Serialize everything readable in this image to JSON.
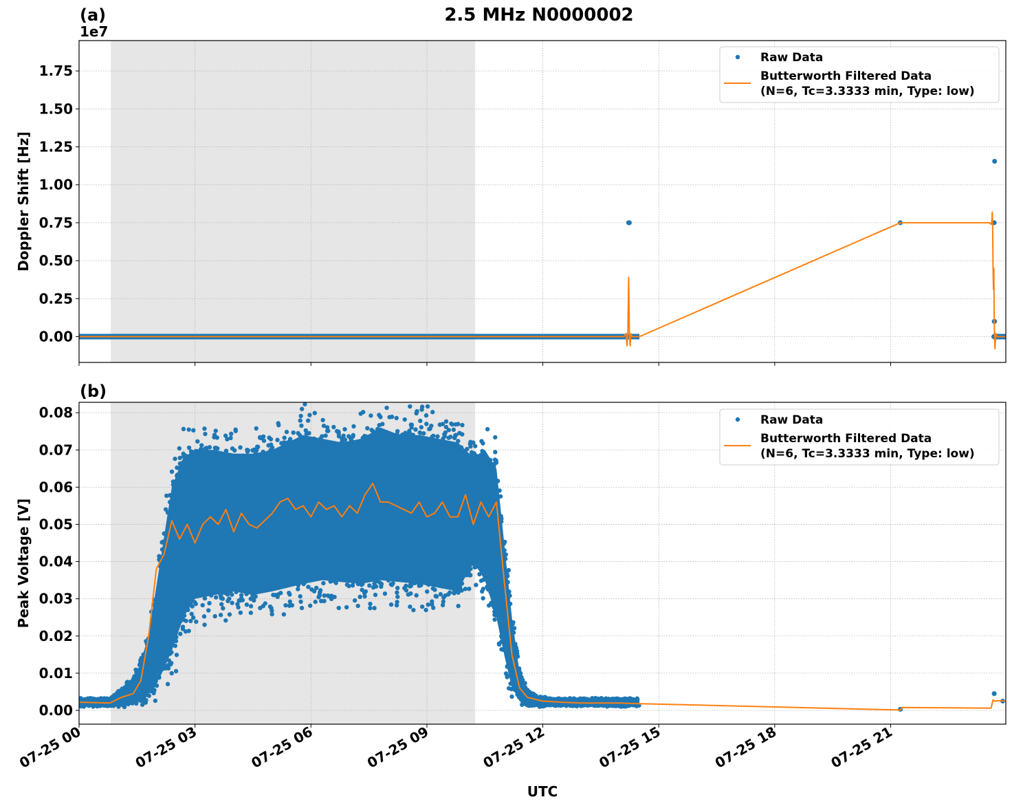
{
  "figure": {
    "title": "2.5 MHz N0000002",
    "xlabel": "UTC"
  },
  "chart_data": [
    {
      "type": "scatter",
      "panel": "(a)",
      "title": "",
      "xlabel": "",
      "ylabel": "Doppler Shift [Hz]",
      "y_offset_text": "1e7",
      "xlim_hours": [
        0,
        23.98
      ],
      "ylim": [
        -0.17,
        1.95
      ],
      "yticks": [
        0.0,
        0.25,
        0.5,
        0.75,
        1.0,
        1.25,
        1.5,
        1.75
      ],
      "ytick_labels": [
        "0.00",
        "0.25",
        "0.50",
        "0.75",
        "1.00",
        "1.25",
        "1.50",
        "1.75"
      ],
      "grid": true,
      "legend_position": "upper right",
      "shaded_span_hours": [
        0.82,
        10.25
      ],
      "series": [
        {
          "name": "Raw Data",
          "kind": "points",
          "color": "#1f77b4",
          "segments": [
            {
              "x_start": 0.0,
              "x_end": 14.5,
              "y": 0.0
            },
            {
              "x_start": 23.65,
              "x_end": 23.98,
              "y": 0.0
            }
          ],
          "points": [
            {
              "x": 14.22,
              "y": 0.75
            },
            {
              "x": 14.24,
              "y": 0.75
            },
            {
              "x": 21.25,
              "y": 0.75
            },
            {
              "x": 23.68,
              "y": 0.75
            },
            {
              "x": 23.69,
              "y": 1.155
            },
            {
              "x": 23.69,
              "y": 1.86
            },
            {
              "x": 23.68,
              "y": 0.1
            },
            {
              "x": 23.69,
              "y": 0.1
            },
            {
              "x": 23.67,
              "y": 0.0
            }
          ]
        },
        {
          "name": "Butterworth Filtered Data\n(N=6, Tc=3.3333 min, Type: low)",
          "kind": "line",
          "color": "#ff7f0e",
          "x": [
            0,
            14.1,
            14.15,
            14.18,
            14.2,
            14.22,
            14.24,
            14.26,
            14.28,
            14.3,
            14.32,
            14.5,
            21.25,
            23.55,
            23.6,
            23.62,
            23.63,
            23.64,
            23.65,
            23.66,
            23.67,
            23.68,
            23.7,
            23.72,
            23.75,
            23.98
          ],
          "y": [
            0,
            0,
            0.02,
            -0.06,
            0.02,
            0.39,
            0.02,
            -0.06,
            0.02,
            0.0,
            0.0,
            0.0,
            0.75,
            0.75,
            0.74,
            0.77,
            0.82,
            0.72,
            0.46,
            0.31,
            0.45,
            0.1,
            -0.08,
            0.02,
            0.0,
            0.0
          ]
        }
      ]
    },
    {
      "type": "scatter",
      "panel": "(b)",
      "title": "",
      "xlabel": "UTC",
      "ylabel": "Peak Voltage [V]",
      "xlim_hours": [
        0,
        23.98
      ],
      "ylim": [
        -0.0037,
        0.0828
      ],
      "yticks": [
        0.0,
        0.01,
        0.02,
        0.03,
        0.04,
        0.05,
        0.06,
        0.07,
        0.08
      ],
      "ytick_labels": [
        "0.00",
        "0.01",
        "0.02",
        "0.03",
        "0.04",
        "0.05",
        "0.06",
        "0.07",
        "0.08"
      ],
      "grid": true,
      "legend_position": "upper right",
      "shaded_span_hours": [
        0.82,
        10.25
      ],
      "series": [
        {
          "name": "Raw Data",
          "kind": "points",
          "color": "#1f77b4",
          "envelope": {
            "x": [
              0.0,
              0.8,
              1.2,
              1.5,
              1.8,
              2.1,
              2.4,
              2.7,
              3.0,
              3.5,
              4.0,
              4.5,
              5.0,
              5.4,
              5.8,
              6.3,
              6.8,
              7.3,
              7.8,
              8.3,
              8.8,
              9.3,
              9.8,
              10.2,
              10.5,
              10.8,
              11.0,
              11.2,
              11.4,
              11.6,
              11.9,
              12.3,
              13.0,
              14.0,
              14.5
            ],
            "low": [
              0.0013,
              0.0013,
              0.0018,
              0.0025,
              0.0045,
              0.009,
              0.016,
              0.025,
              0.03,
              0.031,
              0.032,
              0.031,
              0.032,
              0.033,
              0.034,
              0.035,
              0.0345,
              0.034,
              0.035,
              0.0345,
              0.034,
              0.033,
              0.032,
              0.04,
              0.035,
              0.025,
              0.015,
              0.006,
              0.003,
              0.0016,
              0.0014,
              0.0014,
              0.0014,
              0.0013,
              0.0013
            ],
            "high": [
              0.003,
              0.003,
              0.006,
              0.01,
              0.02,
              0.04,
              0.06,
              0.068,
              0.07,
              0.07,
              0.069,
              0.069,
              0.07,
              0.072,
              0.074,
              0.073,
              0.072,
              0.073,
              0.076,
              0.074,
              0.074,
              0.073,
              0.072,
              0.068,
              0.07,
              0.065,
              0.045,
              0.025,
              0.01,
              0.005,
              0.0035,
              0.003,
              0.003,
              0.003,
              0.003
            ]
          },
          "points": [
            {
              "x": 21.25,
              "y": 0.0003
            },
            {
              "x": 23.68,
              "y": 0.0045
            },
            {
              "x": 23.9,
              "y": 0.0025
            }
          ]
        },
        {
          "name": "Butterworth Filtered Data\n(N=6, Tc=3.3333 min, Type: low)",
          "kind": "line",
          "color": "#ff7f0e",
          "x": [
            0.0,
            0.8,
            1.1,
            1.4,
            1.6,
            1.8,
            2.0,
            2.2,
            2.4,
            2.6,
            2.8,
            3.0,
            3.2,
            3.4,
            3.6,
            3.8,
            4.0,
            4.2,
            4.4,
            4.6,
            4.8,
            5.0,
            5.2,
            5.4,
            5.6,
            5.8,
            6.0,
            6.2,
            6.4,
            6.6,
            6.8,
            7.0,
            7.2,
            7.4,
            7.6,
            7.8,
            8.0,
            8.2,
            8.4,
            8.6,
            8.8,
            9.0,
            9.2,
            9.4,
            9.6,
            9.8,
            10.0,
            10.2,
            10.4,
            10.6,
            10.8,
            11.0,
            11.2,
            11.4,
            11.6,
            11.8,
            12.0,
            12.5,
            13.0,
            14.0,
            14.5,
            21.25,
            21.3,
            23.6,
            23.65,
            23.7,
            23.8,
            23.98
          ],
          "y": [
            0.0022,
            0.002,
            0.0035,
            0.0045,
            0.008,
            0.02,
            0.038,
            0.042,
            0.051,
            0.046,
            0.05,
            0.045,
            0.05,
            0.052,
            0.05,
            0.054,
            0.048,
            0.053,
            0.05,
            0.049,
            0.051,
            0.053,
            0.056,
            0.057,
            0.054,
            0.055,
            0.052,
            0.056,
            0.054,
            0.055,
            0.052,
            0.055,
            0.053,
            0.058,
            0.061,
            0.056,
            0.056,
            0.055,
            0.054,
            0.053,
            0.056,
            0.052,
            0.053,
            0.056,
            0.052,
            0.052,
            0.058,
            0.05,
            0.056,
            0.052,
            0.056,
            0.035,
            0.015,
            0.006,
            0.0035,
            0.003,
            0.0025,
            0.0022,
            0.002,
            0.002,
            0.0018,
            0.0001,
            0.0008,
            0.0006,
            0.0028,
            0.0025,
            0.0026,
            0.0025
          ]
        }
      ]
    }
  ],
  "xaxis": {
    "tick_hours": [
      0,
      3,
      6,
      9,
      12,
      15,
      18,
      21
    ],
    "tick_labels": [
      "07-25 00",
      "07-25 03",
      "07-25 06",
      "07-25 09",
      "07-25 12",
      "07-25 15",
      "07-25 18",
      "07-25 21"
    ]
  },
  "legend": {
    "raw_label": "Raw Data",
    "filtered_label_line1": "Butterworth Filtered Data",
    "filtered_label_line2": "(N=6, Tc=3.3333 min, Type: low)"
  },
  "colors": {
    "raw": "#1f77b4",
    "filtered": "#ff7f0e",
    "shade": "#e6e6e6",
    "grid": "#b0b0b0"
  }
}
